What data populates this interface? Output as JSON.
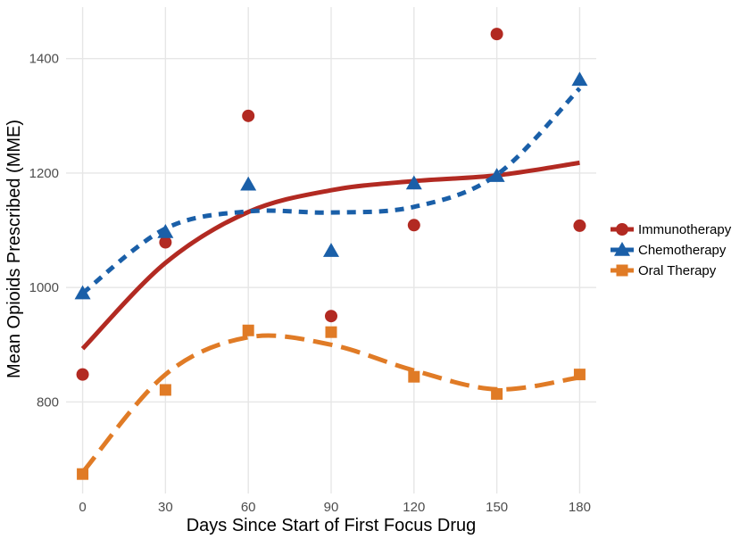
{
  "chart_data": {
    "type": "scatter",
    "title": "",
    "xlabel": "Days Since Start of First Focus Drug",
    "ylabel": "Mean Opioids Prescribed (MME)",
    "xlim": [
      -6,
      186
    ],
    "ylim": [
      640,
      1490
    ],
    "x_ticks": [
      0,
      30,
      60,
      90,
      120,
      150,
      180
    ],
    "y_ticks": [
      800,
      1000,
      1200,
      1400
    ],
    "grid": true,
    "legend_position": "right",
    "series": [
      {
        "name": "Immunotherapy",
        "color": "#b22a22",
        "marker": "circle",
        "line_style": "solid",
        "x": [
          0,
          30,
          60,
          90,
          120,
          150,
          180
        ],
        "y": [
          848,
          1079,
          1300,
          950,
          1109,
          1443,
          1108
        ],
        "fit": [
          893,
          1043,
          1132,
          1170,
          1186,
          1196,
          1218
        ]
      },
      {
        "name": "Chemotherapy",
        "color": "#1a5fa8",
        "marker": "triangle",
        "line_style": "dotted",
        "x": [
          0,
          30,
          60,
          90,
          120,
          150,
          180
        ],
        "y": [
          990,
          1097,
          1180,
          1064,
          1182,
          1195,
          1363
        ],
        "fit": [
          990,
          1103,
          1133,
          1131,
          1141,
          1197,
          1348
        ]
      },
      {
        "name": "Oral Therapy",
        "color": "#e07b26",
        "marker": "square",
        "line_style": "dashed",
        "x": [
          0,
          30,
          60,
          90,
          120,
          150,
          180
        ],
        "y": [
          674,
          821,
          925,
          922,
          844,
          814,
          848
        ],
        "fit": [
          677,
          848,
          913,
          900,
          855,
          822,
          843
        ]
      }
    ]
  }
}
